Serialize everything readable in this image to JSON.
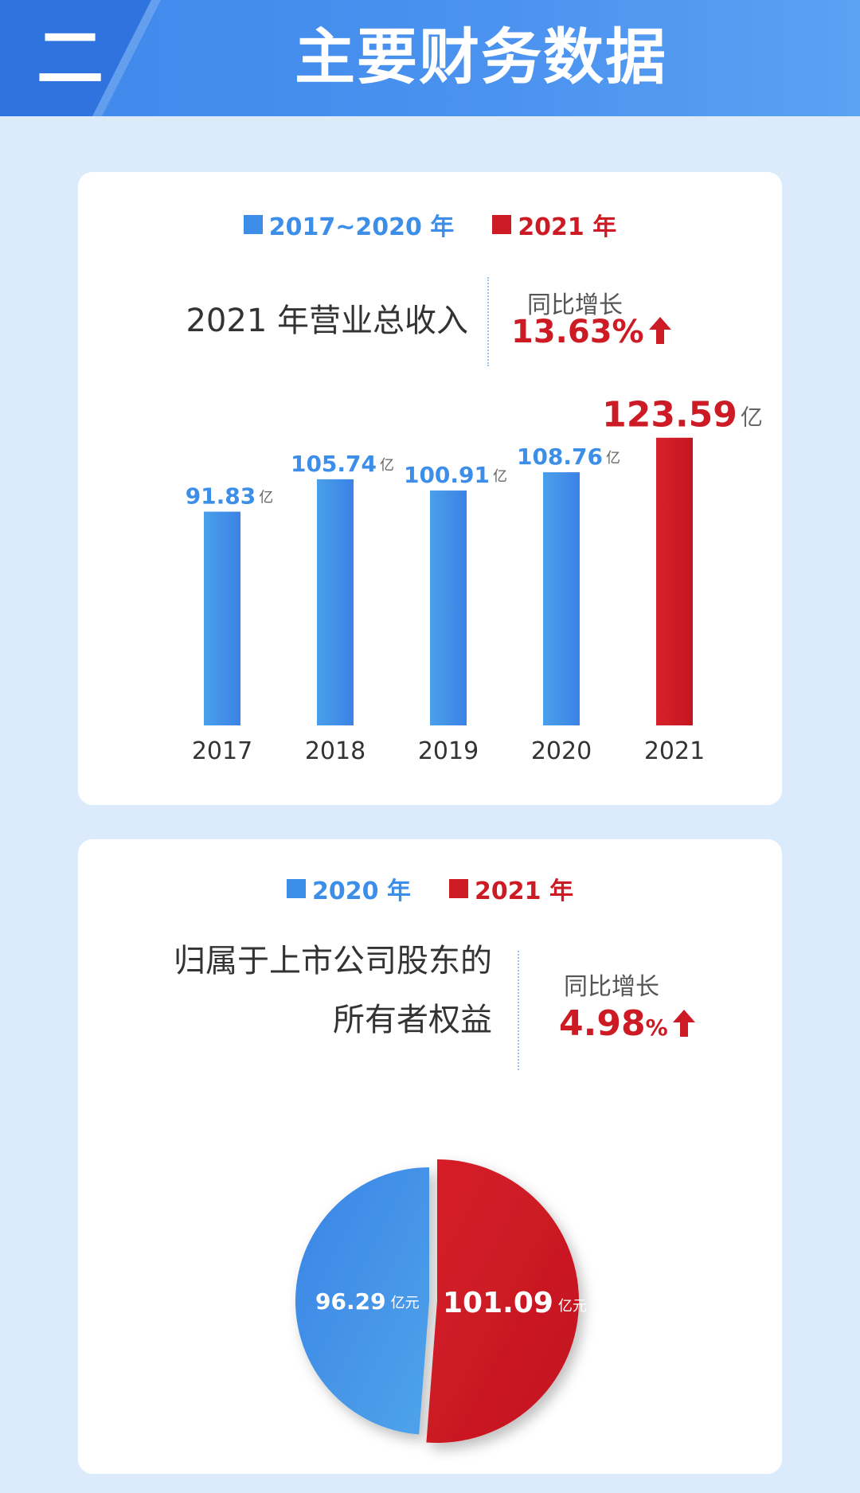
{
  "header": {
    "section_number": "二",
    "title": "主要财务数据"
  },
  "colors": {
    "blue": "#3d8ee9",
    "red": "#cc1b24",
    "header_blue": "#3f87ea",
    "background": "#dcebfb"
  },
  "revenue": {
    "legend": [
      {
        "label": "2017~2020 年",
        "color": "#3d8ee9"
      },
      {
        "label": "2021 年",
        "color": "#cc1b24"
      }
    ],
    "label": "2021 年营业总收入",
    "growth_caption": "同比增长",
    "growth_value": "13.63%",
    "growth_arrow_icon": "arrow-up-icon"
  },
  "equity": {
    "legend": [
      {
        "label": "2020 年",
        "color": "#3d8ee9"
      },
      {
        "label": "2021 年",
        "color": "#cc1b24"
      }
    ],
    "label_line1": "归属于上市公司股东的",
    "label_line2": "所有者权益",
    "growth_caption": "同比增长",
    "growth_number": "4.98",
    "growth_unit": "%",
    "growth_arrow_icon": "arrow-up-icon"
  },
  "chart_data": [
    {
      "type": "bar",
      "categories": [
        "2017",
        "2018",
        "2019",
        "2020",
        "2021"
      ],
      "values": [
        91.83,
        105.74,
        100.91,
        108.76,
        123.59
      ],
      "value_labels": [
        "91.83",
        "105.74",
        "100.91",
        "108.76",
        "123.59"
      ],
      "unit": "亿",
      "colors": [
        "#3d8ee9",
        "#3d8ee9",
        "#3d8ee9",
        "#3d8ee9",
        "#cc1b24"
      ],
      "ylim": [
        0,
        130
      ],
      "grid": false
    },
    {
      "type": "pie",
      "labels": [
        "2020 年",
        "2021 年"
      ],
      "values": [
        96.29,
        101.09
      ],
      "value_labels": [
        "96.29",
        "101.09"
      ],
      "unit": "亿元",
      "colors": [
        "#3d8ee9",
        "#cc1b24"
      ]
    }
  ]
}
